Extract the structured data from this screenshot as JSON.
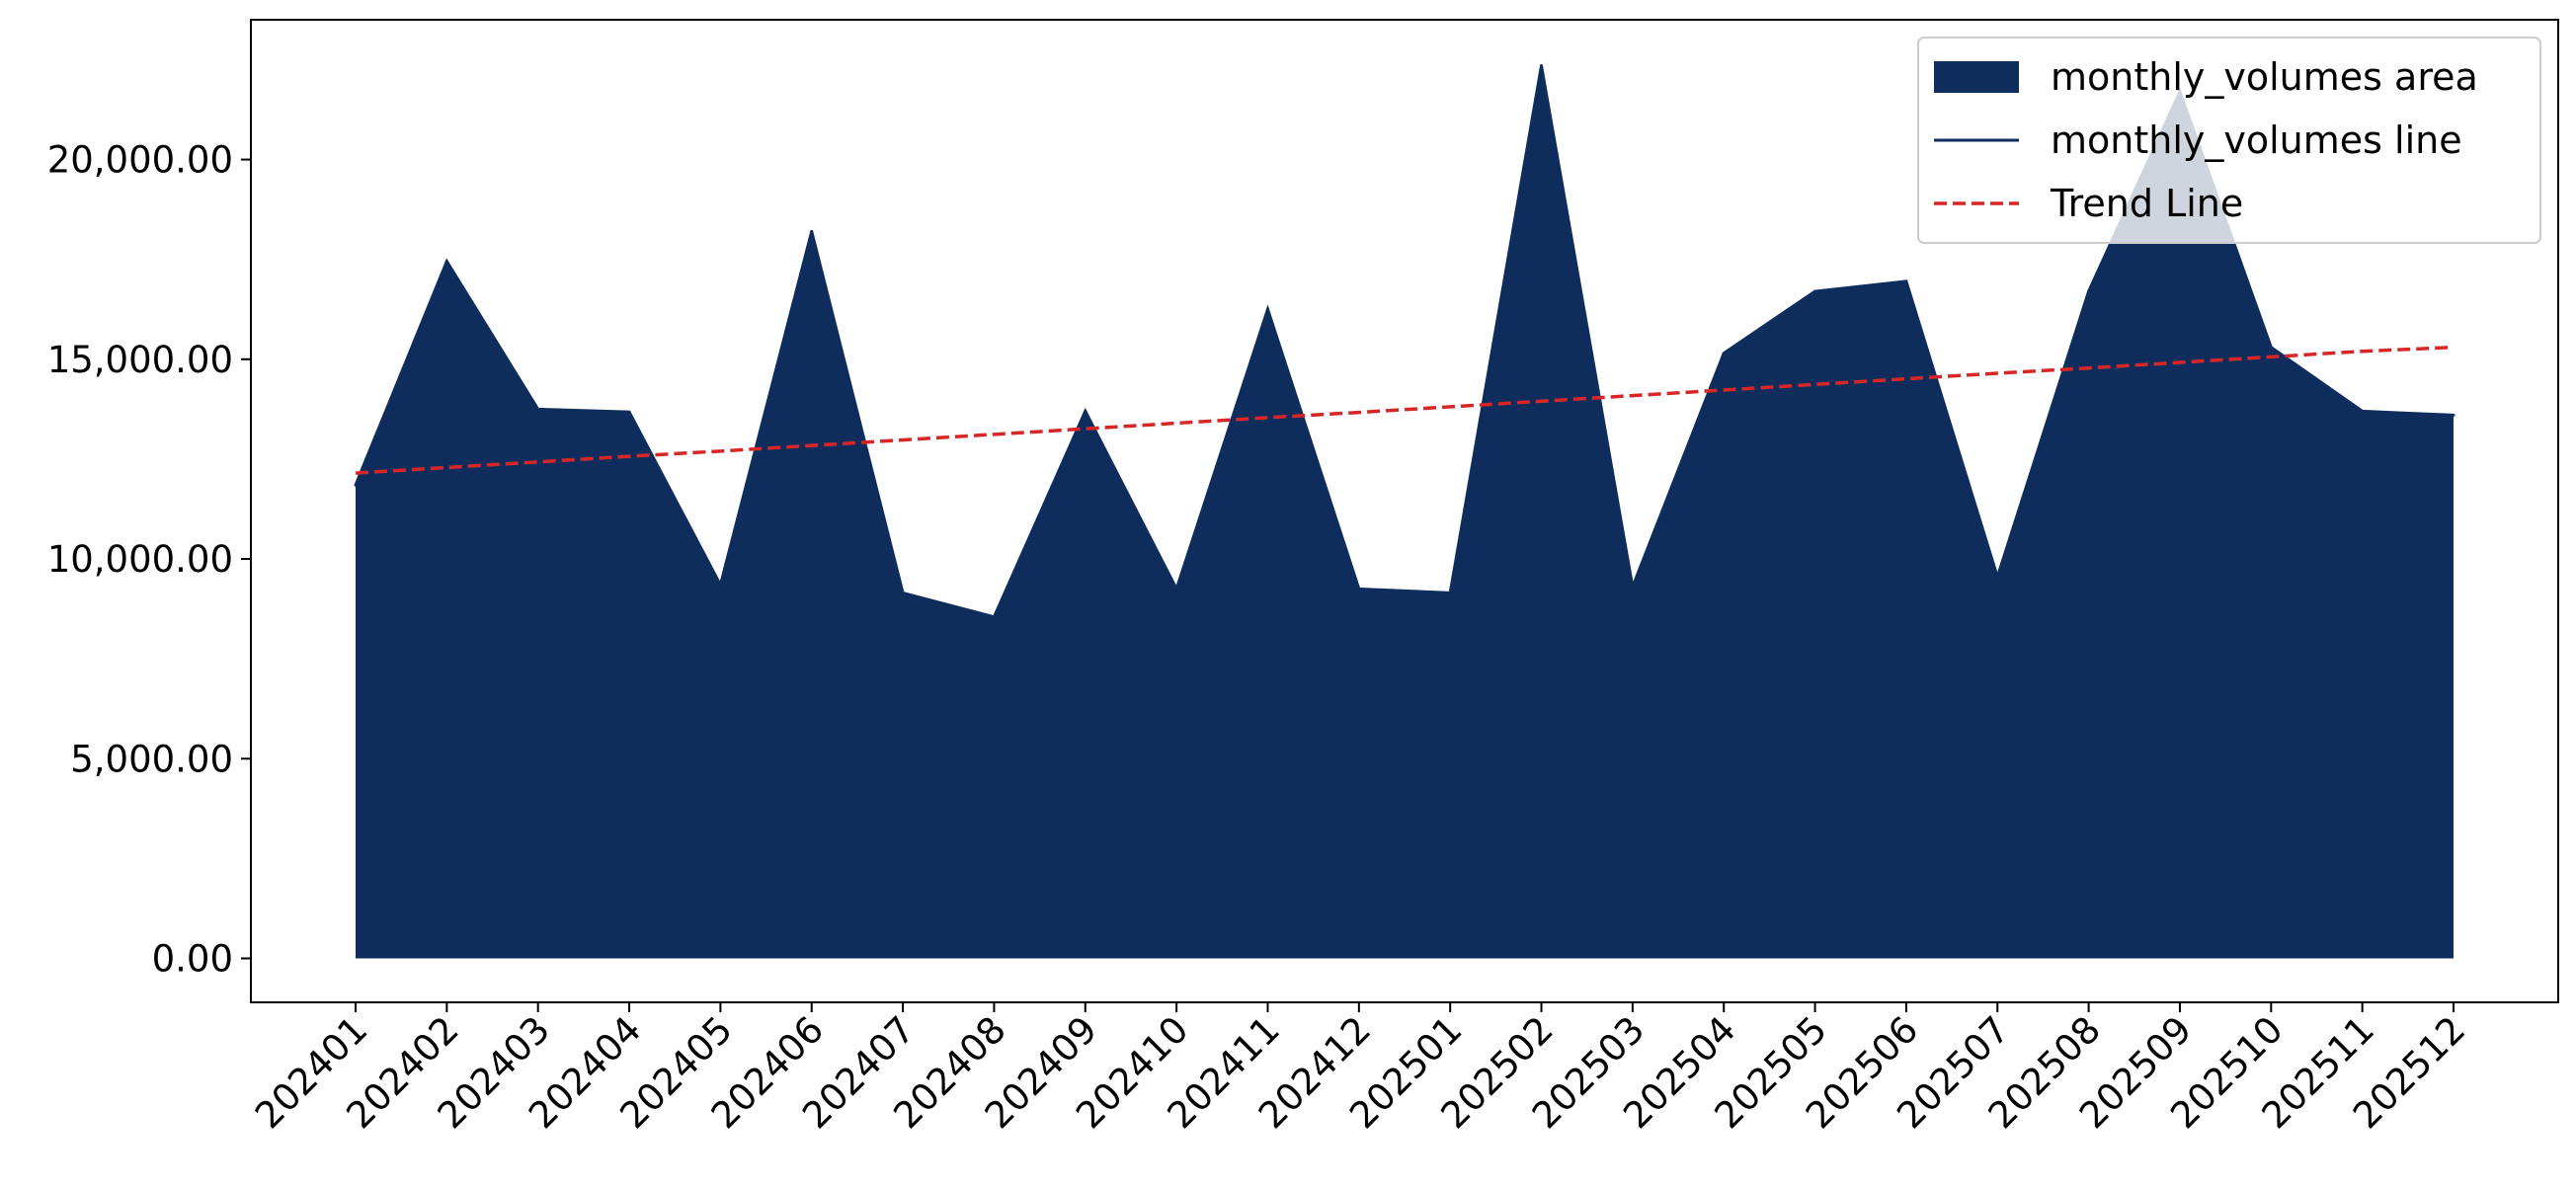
{
  "chart_data": {
    "type": "area",
    "title": "",
    "xlabel": "",
    "ylabel": "",
    "categories": [
      "202401",
      "202402",
      "202403",
      "202404",
      "202405",
      "202406",
      "202407",
      "202408",
      "202409",
      "202410",
      "202411",
      "202412",
      "202501",
      "202502",
      "202503",
      "202504",
      "202505",
      "202506",
      "202507",
      "202508",
      "202509",
      "202510",
      "202511",
      "202512"
    ],
    "series": [
      {
        "name": "monthly_volumes area",
        "kind": "area",
        "color": "#0f2d5c",
        "values": [
          11850,
          17450,
          13750,
          13680,
          9350,
          18200,
          9150,
          8550,
          13700,
          9250,
          16250,
          9250,
          9150,
          22350,
          9300,
          15150,
          16700,
          16950,
          9550,
          16700,
          21700,
          15300,
          13700,
          13600
        ]
      },
      {
        "name": "monthly_volumes line",
        "kind": "line",
        "color": "#0f2d5c"
      },
      {
        "name": "Trend Line",
        "kind": "dashed-line",
        "color": "#d62728",
        "values": [
          12150,
          12290,
          12430,
          12570,
          12700,
          12840,
          12980,
          13120,
          13260,
          13400,
          13540,
          13670,
          13810,
          13950,
          14090,
          14230,
          14370,
          14510,
          14650,
          14780,
          14920,
          15060,
          15200,
          15300
        ]
      }
    ],
    "y_ticks": [
      {
        "value": 0,
        "label": "0.00"
      },
      {
        "value": 5000,
        "label": "5,000.00"
      },
      {
        "value": 10000,
        "label": "10,000.00"
      },
      {
        "value": 15000,
        "label": "15,000.00"
      },
      {
        "value": 20000,
        "label": "20,000.00"
      }
    ],
    "ylim": [
      -1100,
      23500
    ],
    "grid": false,
    "legend_position": "top-right"
  }
}
